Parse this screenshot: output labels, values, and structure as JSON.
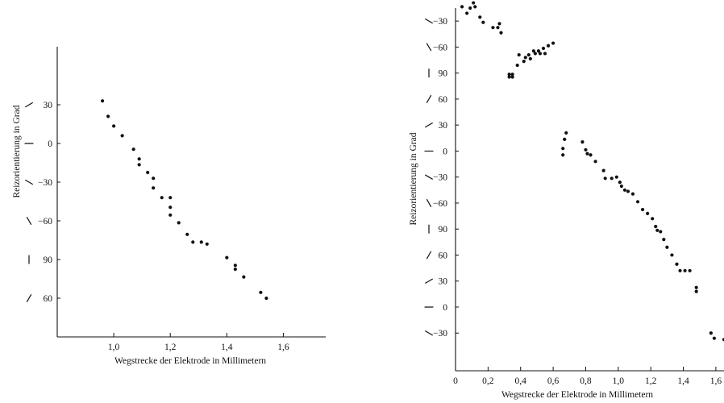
{
  "chart_data": [
    {
      "type": "scatter",
      "title": "",
      "xlabel": "Wegstrecke der Elektrode in Millimetern",
      "ylabel": "Reizorientierung in Grad",
      "xlim": [
        0.8,
        1.75
      ],
      "ylim": [
        0,
        7.5
      ],
      "x_ticks": [
        {
          "x": 1.0,
          "label": "1,0"
        },
        {
          "x": 1.2,
          "label": "1,2"
        },
        {
          "x": 1.4,
          "label": "1,4"
        },
        {
          "x": 1.6,
          "label": "1,6"
        }
      ],
      "y_ticks": [
        {
          "y": 6,
          "label": "30",
          "orientation": 30
        },
        {
          "y": 5,
          "label": "0",
          "orientation": 0
        },
        {
          "y": 4,
          "label": "−30",
          "orientation": -30
        },
        {
          "y": 3,
          "label": "−60",
          "orientation": -60
        },
        {
          "y": 2,
          "label": "90",
          "orientation": 90
        },
        {
          "y": 1,
          "label": "60",
          "orientation": 60
        }
      ],
      "points": [
        {
          "x": 0.96,
          "y": 6.1
        },
        {
          "x": 0.98,
          "y": 5.7
        },
        {
          "x": 1.0,
          "y": 5.45
        },
        {
          "x": 1.03,
          "y": 5.2
        },
        {
          "x": 1.07,
          "y": 4.85
        },
        {
          "x": 1.09,
          "y": 4.6
        },
        {
          "x": 1.09,
          "y": 4.45
        },
        {
          "x": 1.12,
          "y": 4.25
        },
        {
          "x": 1.14,
          "y": 4.1
        },
        {
          "x": 1.14,
          "y": 3.85
        },
        {
          "x": 1.17,
          "y": 3.6
        },
        {
          "x": 1.2,
          "y": 3.6
        },
        {
          "x": 1.2,
          "y": 3.35
        },
        {
          "x": 1.2,
          "y": 3.15
        },
        {
          "x": 1.23,
          "y": 2.95
        },
        {
          "x": 1.26,
          "y": 2.65
        },
        {
          "x": 1.28,
          "y": 2.45
        },
        {
          "x": 1.31,
          "y": 2.45
        },
        {
          "x": 1.33,
          "y": 2.4
        },
        {
          "x": 1.4,
          "y": 2.05
        },
        {
          "x": 1.43,
          "y": 1.85
        },
        {
          "x": 1.43,
          "y": 1.75
        },
        {
          "x": 1.46,
          "y": 1.55
        },
        {
          "x": 1.52,
          "y": 1.15
        },
        {
          "x": 1.54,
          "y": 1.0
        }
      ]
    },
    {
      "type": "scatter",
      "title": "",
      "xlabel": "Wegstrecke der Elektrode in Millimetern",
      "ylabel": "Reizorientierung in Grad",
      "xlim": [
        0,
        1.65
      ],
      "ylim": [
        -0.45,
        13.5
      ],
      "x_ticks": [
        {
          "x": 0,
          "label": "0"
        },
        {
          "x": 0.2,
          "label": "0,2"
        },
        {
          "x": 0.4,
          "label": "0,4"
        },
        {
          "x": 0.6,
          "label": "0,6"
        },
        {
          "x": 0.8,
          "label": "0,8"
        },
        {
          "x": 1.0,
          "label": "1,0"
        },
        {
          "x": 1.2,
          "label": "1,2"
        },
        {
          "x": 1.4,
          "label": "1,4"
        },
        {
          "x": 1.6,
          "label": "1,6"
        }
      ],
      "y_ticks": [
        {
          "y": 13,
          "label": "−30",
          "orientation": -30
        },
        {
          "y": 12,
          "label": "−60",
          "orientation": -60
        },
        {
          "y": 11,
          "label": "90",
          "orientation": 90
        },
        {
          "y": 10,
          "label": "60",
          "orientation": 60
        },
        {
          "y": 9,
          "label": "30",
          "orientation": 30
        },
        {
          "y": 8,
          "label": "0",
          "orientation": 0
        },
        {
          "y": 7,
          "label": "−30",
          "orientation": -30
        },
        {
          "y": 6,
          "label": "−60",
          "orientation": -60
        },
        {
          "y": 5,
          "label": "90",
          "orientation": 90
        },
        {
          "y": 4,
          "label": "60",
          "orientation": 60
        },
        {
          "y": 3,
          "label": "30",
          "orientation": 30
        },
        {
          "y": 2,
          "label": "0",
          "orientation": 0
        },
        {
          "y": 1,
          "label": "−30",
          "orientation": -30
        }
      ],
      "points": [
        {
          "x": 0.04,
          "y": 13.55
        },
        {
          "x": 0.07,
          "y": 13.3
        },
        {
          "x": 0.09,
          "y": 13.5
        },
        {
          "x": 0.11,
          "y": 13.7
        },
        {
          "x": 0.12,
          "y": 13.55
        },
        {
          "x": 0.15,
          "y": 13.15
        },
        {
          "x": 0.17,
          "y": 12.95
        },
        {
          "x": 0.23,
          "y": 12.75
        },
        {
          "x": 0.26,
          "y": 12.75
        },
        {
          "x": 0.27,
          "y": 12.9
        },
        {
          "x": 0.28,
          "y": 12.55
        },
        {
          "x": 0.33,
          "y": 10.95
        },
        {
          "x": 0.33,
          "y": 10.85
        },
        {
          "x": 0.35,
          "y": 10.95
        },
        {
          "x": 0.35,
          "y": 10.85
        },
        {
          "x": 0.38,
          "y": 11.3
        },
        {
          "x": 0.39,
          "y": 11.7
        },
        {
          "x": 0.42,
          "y": 11.45
        },
        {
          "x": 0.43,
          "y": 11.6
        },
        {
          "x": 0.45,
          "y": 11.7
        },
        {
          "x": 0.46,
          "y": 11.55
        },
        {
          "x": 0.48,
          "y": 11.85
        },
        {
          "x": 0.49,
          "y": 11.75
        },
        {
          "x": 0.51,
          "y": 11.85
        },
        {
          "x": 0.52,
          "y": 11.75
        },
        {
          "x": 0.54,
          "y": 11.95
        },
        {
          "x": 0.55,
          "y": 11.75
        },
        {
          "x": 0.57,
          "y": 12.05
        },
        {
          "x": 0.6,
          "y": 12.15
        },
        {
          "x": 0.66,
          "y": 8.1
        },
        {
          "x": 0.66,
          "y": 7.85
        },
        {
          "x": 0.67,
          "y": 8.45
        },
        {
          "x": 0.68,
          "y": 8.7
        },
        {
          "x": 0.78,
          "y": 8.35
        },
        {
          "x": 0.8,
          "y": 8.05
        },
        {
          "x": 0.81,
          "y": 7.9
        },
        {
          "x": 0.83,
          "y": 7.85
        },
        {
          "x": 0.86,
          "y": 7.6
        },
        {
          "x": 0.91,
          "y": 7.25
        },
        {
          "x": 0.92,
          "y": 6.95
        },
        {
          "x": 0.96,
          "y": 6.95
        },
        {
          "x": 0.99,
          "y": 7.0
        },
        {
          "x": 1.01,
          "y": 6.8
        },
        {
          "x": 1.02,
          "y": 6.65
        },
        {
          "x": 1.04,
          "y": 6.5
        },
        {
          "x": 1.06,
          "y": 6.45
        },
        {
          "x": 1.09,
          "y": 6.35
        },
        {
          "x": 1.12,
          "y": 6.05
        },
        {
          "x": 1.15,
          "y": 5.75
        },
        {
          "x": 1.18,
          "y": 5.6
        },
        {
          "x": 1.21,
          "y": 5.4
        },
        {
          "x": 1.23,
          "y": 5.1
        },
        {
          "x": 1.24,
          "y": 4.95
        },
        {
          "x": 1.26,
          "y": 4.9
        },
        {
          "x": 1.28,
          "y": 4.6
        },
        {
          "x": 1.3,
          "y": 4.3
        },
        {
          "x": 1.33,
          "y": 4.0
        },
        {
          "x": 1.36,
          "y": 3.65
        },
        {
          "x": 1.38,
          "y": 3.4
        },
        {
          "x": 1.41,
          "y": 3.4
        },
        {
          "x": 1.44,
          "y": 3.4
        },
        {
          "x": 1.48,
          "y": 2.75
        },
        {
          "x": 1.48,
          "y": 2.6
        },
        {
          "x": 1.57,
          "y": 1.0
        },
        {
          "x": 1.59,
          "y": 0.8
        },
        {
          "x": 1.65,
          "y": 0.75
        }
      ]
    }
  ]
}
